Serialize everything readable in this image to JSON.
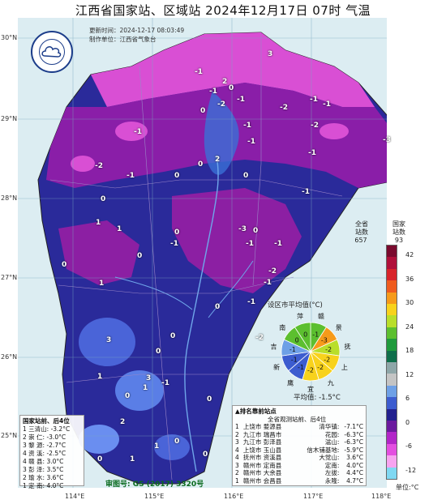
{
  "title": "江西省国家站、区域站   2024年12月17日  07时    气温",
  "meta": {
    "update_time": "更新时间：2024-12-17  08:03:49",
    "producer": "制作单位：江西省气象台"
  },
  "lat_labels": [
    "30°N",
    "29°N",
    "28°N",
    "27°N",
    "26°N",
    "25°N"
  ],
  "lon_labels": [
    "114°E",
    "115°E",
    "116°E",
    "117°E",
    "118°E"
  ],
  "legend": {
    "all_stations_label": "全省\n站数",
    "all_stations_count": "657",
    "national_label": "国家\n站数",
    "national_count": "93",
    "ticks": [
      "42",
      "36",
      "30",
      "24",
      "18",
      "12",
      "6",
      "0",
      "-6",
      "-12"
    ],
    "unit": "单位:°C",
    "colors": [
      "#7a0a2e",
      "#b0103a",
      "#d8242a",
      "#ef5b1e",
      "#f69a1a",
      "#f8d21c",
      "#b9de2a",
      "#5cbf2f",
      "#1f9a3c",
      "#0f6e4a",
      "#8ea6a8",
      "#c4c4c4",
      "#6ea0e6",
      "#3c5ccf",
      "#22208e",
      "#6b1a9e",
      "#b226c8",
      "#e34fe0",
      "#f7a3f0",
      "#7fd8f2"
    ]
  },
  "pie": {
    "title": "设区市平均值(°C)",
    "average": "平均值: -1.5°C",
    "sectors": [
      {
        "city": "赣",
        "value": "-1"
      },
      {
        "city": "景",
        "value": "-3"
      },
      {
        "city": "抚",
        "value": "-2"
      },
      {
        "city": "上",
        "value": "-2"
      },
      {
        "city": "九",
        "value": "-2"
      },
      {
        "city": "宜",
        "value": "-2"
      },
      {
        "city": "鹰",
        "value": "-1"
      },
      {
        "city": "新",
        "value": "-1"
      },
      {
        "city": "吉",
        "value": "-1"
      },
      {
        "city": "南",
        "value": "0"
      },
      {
        "city": "萍",
        "value": "0"
      }
    ]
  },
  "rank_box": {
    "header": "排名靠前站点",
    "col_left_title": "全省观测站前、后4位",
    "rows": [
      {
        "rank": "1",
        "left": "上饶市  婺源县",
        "right_site": "清华镇:",
        "right_val": "-7.1°C"
      },
      {
        "rank": "2",
        "left": "九江市  瑞昌市",
        "right_site": "花园:",
        "right_val": "-6.3°C"
      },
      {
        "rank": "3",
        "left": "九江市  彭泽县",
        "right_site": "湓山:",
        "right_val": "-6.3°C"
      },
      {
        "rank": "4",
        "left": "上饶市  玉山县",
        "right_site": "信木铺基地:",
        "right_val": "-5.9°C"
      },
      {
        "rank": "4",
        "left": "抚州市  资溪县",
        "right_site": "大觉山:",
        "right_val": "3.6°C"
      },
      {
        "rank": "3",
        "left": "赣州市  定南县",
        "right_site": "定南:",
        "right_val": "4.0°C"
      },
      {
        "rank": "2",
        "left": "赣州市  大余县",
        "right_site": "左拔:",
        "right_val": "4.4°C"
      },
      {
        "rank": "1",
        "left": "赣州市  会昌县",
        "right_site": "永隆:",
        "right_val": "4.7°C"
      }
    ]
  },
  "left_box": {
    "title": "国家站前、后4位",
    "rows": [
      "1 三清山: -3.2°C",
      "2 崇  仁: -3.0°C",
      "3 黎  源: -2.7°C",
      "4 资  溪: -2.5°C",
      "4 赣  县:  3.0°C",
      "3 彭  泽:  3.5°C",
      "2 瑜  水:  3.6°C",
      "1 定  南:  4.0°C"
    ]
  },
  "audit": "审图号: GS (2017) 3320号",
  "map_values": [
    {
      "v": "3"
    },
    {
      "v": "-1"
    },
    {
      "v": "2"
    },
    {
      "v": "0"
    },
    {
      "v": "-1"
    },
    {
      "v": "-1"
    },
    {
      "v": "-2"
    },
    {
      "v": "-2"
    },
    {
      "v": "-1"
    },
    {
      "v": "-1"
    },
    {
      "v": "0"
    },
    {
      "v": "-1"
    },
    {
      "v": "-2"
    },
    {
      "v": "-1"
    },
    {
      "v": "-3"
    },
    {
      "v": "-1"
    },
    {
      "v": "-2"
    },
    {
      "v": "-1"
    },
    {
      "v": "0"
    },
    {
      "v": "2"
    },
    {
      "v": "0"
    },
    {
      "v": "0"
    },
    {
      "v": "-1"
    },
    {
      "v": "-1"
    },
    {
      "v": "0"
    },
    {
      "v": "1"
    },
    {
      "v": "1"
    },
    {
      "v": "-1"
    },
    {
      "v": "0"
    },
    {
      "v": "-3"
    },
    {
      "v": "-1"
    },
    {
      "v": "-1"
    },
    {
      "v": "0"
    },
    {
      "v": "-1"
    },
    {
      "v": "-2"
    },
    {
      "v": "0"
    },
    {
      "v": "1"
    },
    {
      "v": "0"
    },
    {
      "v": "-1"
    },
    {
      "v": "0"
    },
    {
      "v": "-2"
    },
    {
      "v": "0"
    },
    {
      "v": "3"
    },
    {
      "v": "0"
    },
    {
      "v": "1"
    },
    {
      "v": "0"
    },
    {
      "v": "-1"
    },
    {
      "v": "1"
    },
    {
      "v": "2"
    },
    {
      "v": "3"
    },
    {
      "v": "0"
    },
    {
      "v": "1"
    },
    {
      "v": "0"
    },
    {
      "v": "0"
    },
    {
      "v": "1"
    },
    {
      "v": "0"
    }
  ]
}
